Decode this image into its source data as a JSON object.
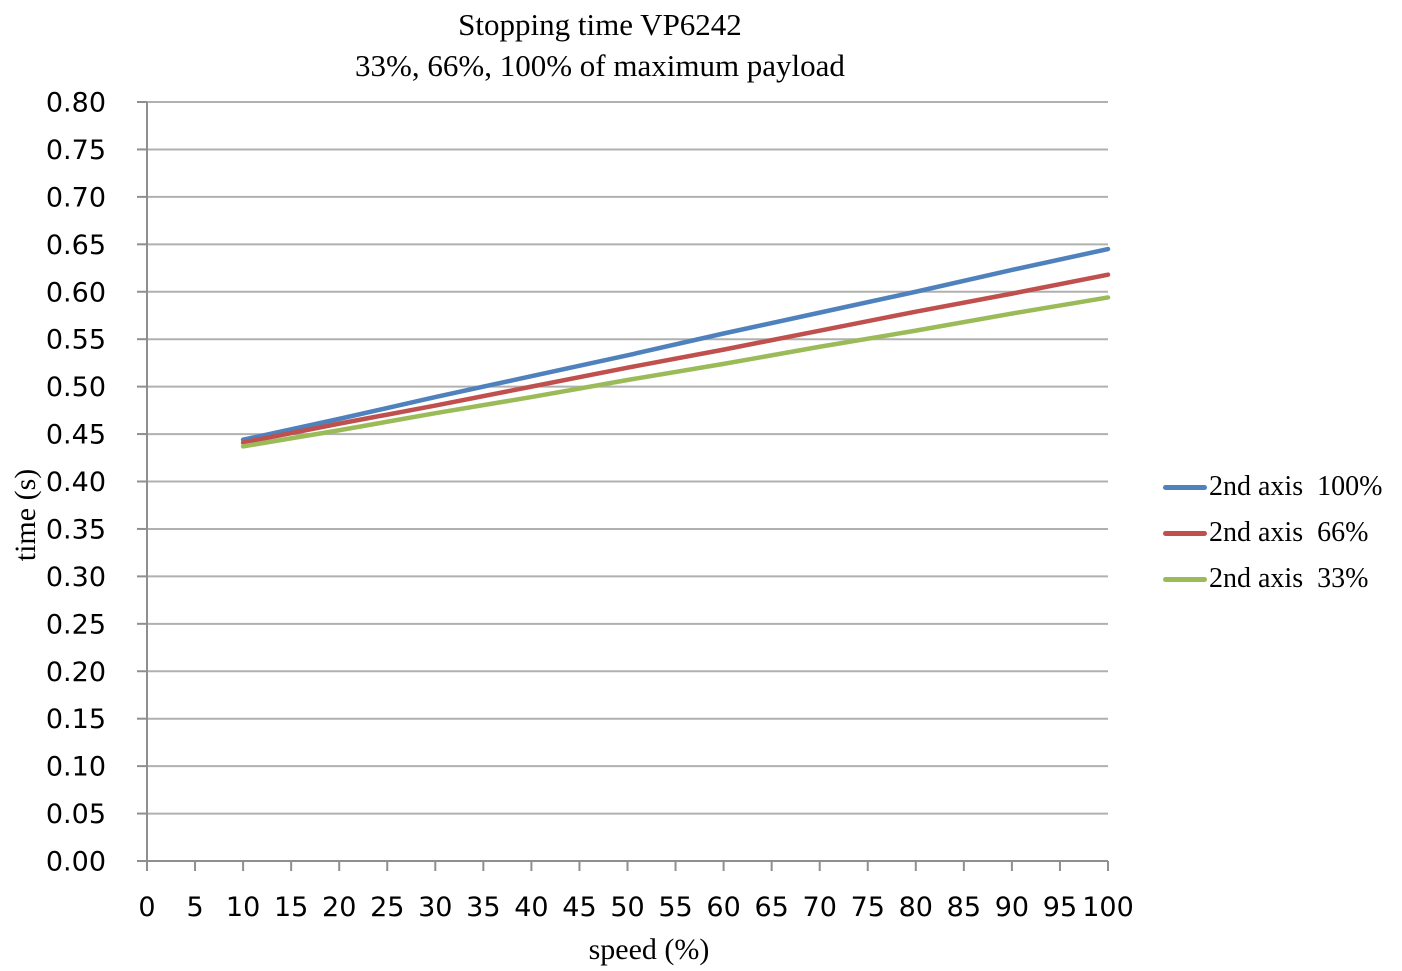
{
  "title": {
    "line1": "Stopping time VP6242",
    "line2": "33%, 66%, 100% of maximum payload"
  },
  "chart_data": {
    "type": "line",
    "title": "Stopping time VP6242",
    "subtitle": "33%, 66%, 100% of maximum payload",
    "xlabel": "speed (%)",
    "ylabel": "time (s)",
    "xlim": [
      0,
      100
    ],
    "ylim": [
      0,
      0.8
    ],
    "grid": true,
    "legend_position": "right",
    "x_ticks": [
      "0",
      "5",
      "10",
      "15",
      "20",
      "25",
      "30",
      "35",
      "40",
      "45",
      "50",
      "55",
      "60",
      "65",
      "70",
      "75",
      "80",
      "85",
      "90",
      "95",
      "100"
    ],
    "y_ticks": [
      "0.00",
      "0.05",
      "0.10",
      "0.15",
      "0.20",
      "0.25",
      "0.30",
      "0.35",
      "0.40",
      "0.45",
      "0.50",
      "0.55",
      "0.60",
      "0.65",
      "0.70",
      "0.75",
      "0.80"
    ],
    "x": [
      10,
      20,
      30,
      40,
      50,
      60,
      70,
      80,
      90,
      100
    ],
    "series": [
      {
        "name": "2nd axis  100%",
        "color": "#4F81BD",
        "values": [
          0.444,
          0.466,
          0.489,
          0.511,
          0.533,
          0.556,
          0.578,
          0.6,
          0.623,
          0.645
        ]
      },
      {
        "name": "2nd axis  66%",
        "color": "#C0504D",
        "values": [
          0.441,
          0.461,
          0.48,
          0.5,
          0.52,
          0.539,
          0.559,
          0.579,
          0.598,
          0.618
        ]
      },
      {
        "name": "2nd axis  33%",
        "color": "#9BBB59",
        "values": [
          0.437,
          0.454,
          0.472,
          0.489,
          0.507,
          0.524,
          0.542,
          0.559,
          0.577,
          0.594
        ]
      }
    ]
  },
  "colors": {
    "background": "#ffffff",
    "gridline": "#b0b0b0",
    "axis": "#8f8f8f",
    "text": "#000000"
  }
}
